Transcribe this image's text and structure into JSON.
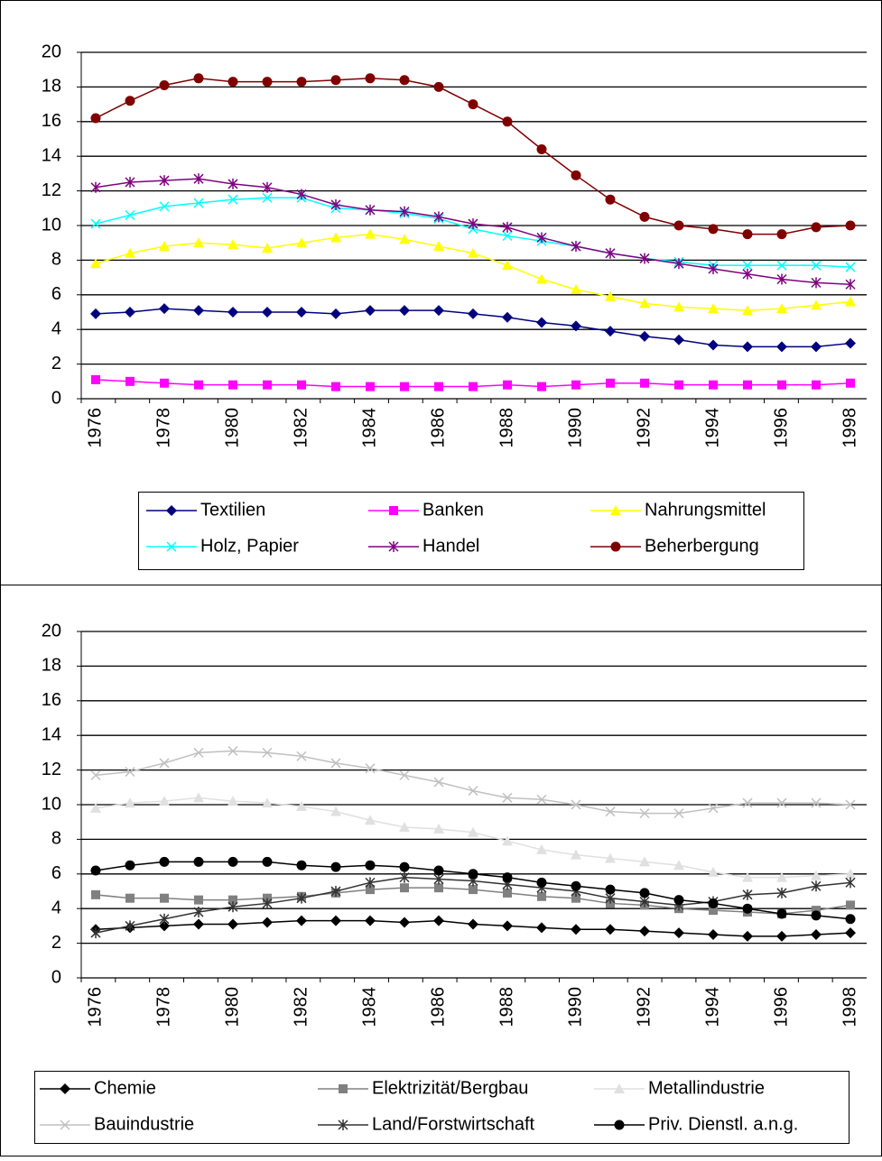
{
  "chart_data": [
    {
      "type": "line",
      "categories": [
        "1976",
        null,
        "1978",
        null,
        "1980",
        null,
        "1982",
        null,
        "1984",
        null,
        "1986",
        null,
        "1988",
        null,
        "1990",
        null,
        "1992",
        null,
        "1994",
        null,
        "1996",
        null,
        "1998"
      ],
      "ylim": [
        0,
        20
      ],
      "yticks": [
        0,
        2,
        4,
        6,
        8,
        10,
        12,
        14,
        16,
        18,
        20
      ],
      "grid": true,
      "series": [
        {
          "name": "Textilien",
          "color": "#000080",
          "marker": "diamond",
          "values": [
            4.9,
            5.0,
            5.2,
            5.1,
            5.0,
            5.0,
            5.0,
            4.9,
            5.1,
            5.1,
            5.1,
            4.9,
            4.7,
            4.4,
            4.2,
            3.9,
            3.6,
            3.4,
            3.1,
            3.0,
            3.0,
            3.0,
            3.2
          ]
        },
        {
          "name": "Banken",
          "color": "#ff00ff",
          "marker": "square",
          "values": [
            1.1,
            1.0,
            0.9,
            0.8,
            0.8,
            0.8,
            0.8,
            0.7,
            0.7,
            0.7,
            0.7,
            0.7,
            0.8,
            0.7,
            0.8,
            0.9,
            0.9,
            0.8,
            0.8,
            0.8,
            0.8,
            0.8,
            0.9
          ]
        },
        {
          "name": "Nahrungsmittel",
          "color": "#ffff00",
          "marker": "triangle",
          "values": [
            7.8,
            8.4,
            8.8,
            9.0,
            8.9,
            8.7,
            9.0,
            9.3,
            9.5,
            9.2,
            8.8,
            8.4,
            7.7,
            6.9,
            6.3,
            5.9,
            5.5,
            5.3,
            5.2,
            5.1,
            5.2,
            5.4,
            5.6
          ]
        },
        {
          "name": "Holz, Papier",
          "color": "#00ffff",
          "marker": "x",
          "values": [
            10.1,
            10.6,
            11.1,
            11.3,
            11.5,
            11.6,
            11.6,
            11.0,
            10.9,
            10.7,
            10.4,
            9.8,
            9.4,
            9.1,
            8.8,
            8.4,
            8.1,
            7.9,
            7.7,
            7.7,
            7.7,
            7.7,
            7.6
          ]
        },
        {
          "name": "Handel",
          "color": "#800080",
          "marker": "star",
          "values": [
            12.2,
            12.5,
            12.6,
            12.7,
            12.4,
            12.2,
            11.8,
            11.2,
            10.9,
            10.8,
            10.5,
            10.1,
            9.9,
            9.3,
            8.8,
            8.4,
            8.1,
            7.8,
            7.5,
            7.2,
            6.9,
            6.7,
            6.6
          ]
        },
        {
          "name": "Beherbergung",
          "color": "#800000",
          "marker": "circle",
          "values": [
            16.2,
            17.2,
            18.1,
            18.5,
            18.3,
            18.3,
            18.3,
            18.4,
            18.5,
            18.4,
            18.0,
            17.0,
            16.0,
            14.4,
            12.9,
            11.5,
            10.5,
            10.0,
            9.8,
            9.5,
            9.5,
            9.9,
            10.0
          ]
        }
      ]
    },
    {
      "type": "line",
      "categories": [
        "1976",
        null,
        "1978",
        null,
        "1980",
        null,
        "1982",
        null,
        "1984",
        null,
        "1986",
        null,
        "1988",
        null,
        "1990",
        null,
        "1992",
        null,
        "1994",
        null,
        "1996",
        null,
        "1998"
      ],
      "ylim": [
        0,
        20
      ],
      "yticks": [
        0,
        2,
        4,
        6,
        8,
        10,
        12,
        14,
        16,
        18,
        20
      ],
      "grid": true,
      "series": [
        {
          "name": "Chemie",
          "color": "#000000",
          "marker": "diamond",
          "values": [
            2.8,
            2.9,
            3.0,
            3.1,
            3.1,
            3.2,
            3.3,
            3.3,
            3.3,
            3.2,
            3.3,
            3.1,
            3.0,
            2.9,
            2.8,
            2.8,
            2.7,
            2.6,
            2.5,
            2.4,
            2.4,
            2.5,
            2.6
          ]
        },
        {
          "name": "Elektrizität/Bergbau",
          "color": "#808080",
          "marker": "square",
          "values": [
            4.8,
            4.6,
            4.6,
            4.5,
            4.5,
            4.6,
            4.7,
            4.9,
            5.1,
            5.2,
            5.2,
            5.1,
            4.9,
            4.7,
            4.6,
            4.3,
            4.2,
            4.0,
            3.9,
            3.8,
            3.7,
            3.9,
            4.2
          ]
        },
        {
          "name": "Metallindustrie",
          "color": "#e0e0e0",
          "marker": "triangle",
          "values": [
            9.8,
            10.1,
            10.2,
            10.4,
            10.2,
            10.1,
            9.9,
            9.6,
            9.1,
            8.7,
            8.6,
            8.4,
            7.9,
            7.4,
            7.1,
            6.9,
            6.7,
            6.5,
            6.1,
            5.8,
            5.8,
            5.9,
            6.0
          ]
        },
        {
          "name": "Bauindustrie",
          "color": "#c0c0c0",
          "marker": "x",
          "values": [
            11.7,
            11.9,
            12.4,
            13.0,
            13.1,
            13.0,
            12.8,
            12.4,
            12.1,
            11.7,
            11.3,
            10.8,
            10.4,
            10.3,
            10.0,
            9.6,
            9.5,
            9.5,
            9.8,
            10.1,
            10.1,
            10.1,
            10.0
          ]
        },
        {
          "name": "Land/Forstwirtschaft",
          "color": "#333333",
          "marker": "star",
          "values": [
            2.6,
            3.0,
            3.4,
            3.8,
            4.1,
            4.3,
            4.6,
            5.0,
            5.5,
            5.8,
            5.7,
            5.6,
            5.4,
            5.2,
            5.0,
            4.6,
            4.4,
            4.2,
            4.4,
            4.8,
            4.9,
            5.3,
            5.5
          ]
        },
        {
          "name": "Priv. Dienstl. a.n.g.",
          "color": "#000000",
          "marker": "circle",
          "values": [
            6.2,
            6.5,
            6.7,
            6.7,
            6.7,
            6.7,
            6.5,
            6.4,
            6.5,
            6.4,
            6.2,
            6.0,
            5.8,
            5.5,
            5.3,
            5.1,
            4.9,
            4.5,
            4.3,
            4.0,
            3.7,
            3.6,
            3.4
          ]
        }
      ]
    }
  ]
}
